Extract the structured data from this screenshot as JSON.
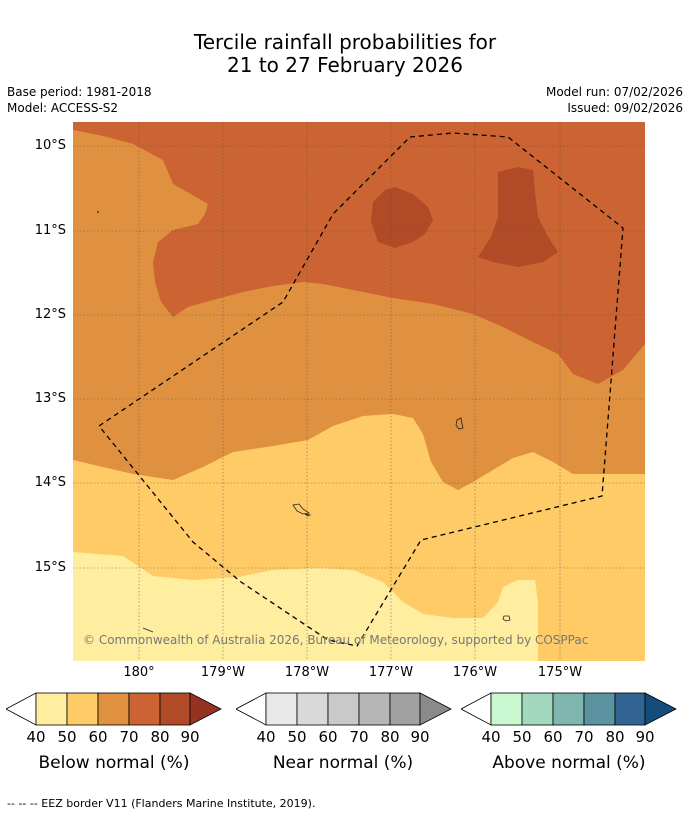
{
  "title": {
    "line1": "Tercile rainfall probabilities for",
    "line2": "21 to 27 February 2026"
  },
  "meta": {
    "base_period": "Base period: 1981-2018",
    "model": "Model: ACCESS-S2",
    "model_run": "Model run: 07/02/2026",
    "issued": "Issued: 09/02/2026"
  },
  "latitude_labels": [
    "10°S",
    "11°S",
    "12°S",
    "13°S",
    "14°S",
    "15°S"
  ],
  "longitude_labels": [
    "180°",
    "179°W",
    "178°W",
    "177°W",
    "176°W",
    "175°W"
  ],
  "copyright": "© Commonwealth of Australia 2026, Bureau of Meteorology, supported by COSPPac",
  "legends": [
    {
      "title": "Below normal (%)",
      "ticks": [
        "40",
        "50",
        "60",
        "70",
        "80",
        "90"
      ],
      "colors": [
        "#ffeea0",
        "#fecb66",
        "#e0913f",
        "#cb6432",
        "#b04a27",
        "#943420"
      ]
    },
    {
      "title": "Near normal (%)",
      "ticks": [
        "40",
        "50",
        "60",
        "70",
        "80",
        "90"
      ],
      "colors": [
        "#e8e8e8",
        "#d9d9d9",
        "#c9c9c9",
        "#b6b6b6",
        "#a1a1a1",
        "#8a8a8a"
      ]
    },
    {
      "title": "Above normal (%)",
      "ticks": [
        "40",
        "50",
        "60",
        "70",
        "80",
        "90"
      ],
      "colors": [
        "#c8f7d0",
        "#a2d8bd",
        "#7fb6b0",
        "#5b93a0",
        "#316492",
        "#144c7c"
      ]
    }
  ],
  "footnote": "--  --  -- EEZ border V11 (Flanders Marine Institute, 2019)."
}
